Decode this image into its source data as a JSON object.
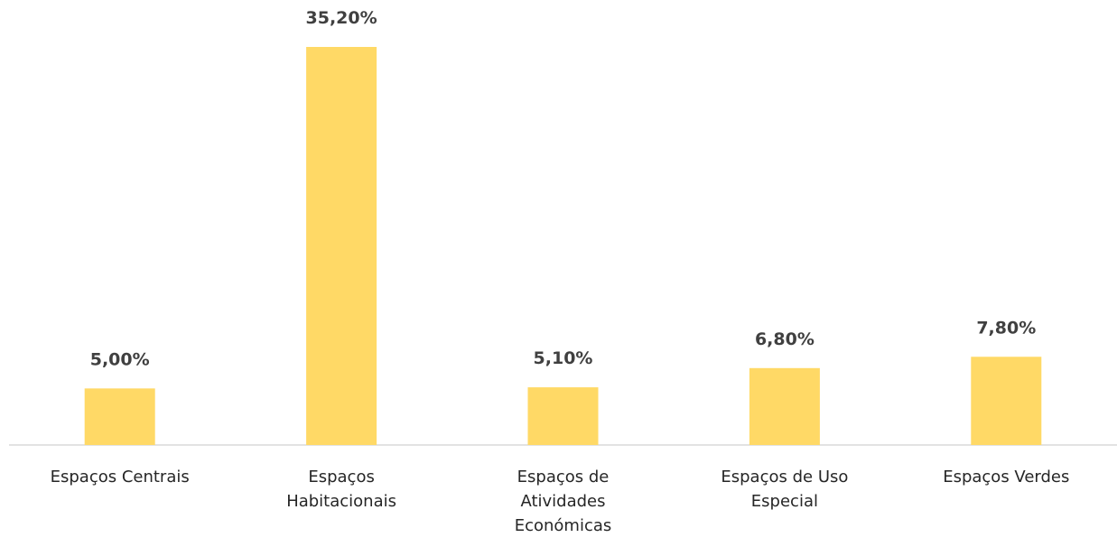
{
  "chart_data": {
    "type": "bar",
    "categories": [
      "Espaços Centrais",
      "Espaços Habitacionais",
      "Espaços de Atividades Económicas",
      "Espaços de Uso Especial",
      "Espaços Verdes"
    ],
    "values": [
      5.0,
      35.2,
      5.1,
      6.8,
      7.8
    ],
    "value_labels": [
      "5,00%",
      "35,20%",
      "5,10%",
      "6,80%",
      "7,80%"
    ],
    "color": "#ffd966"
  }
}
